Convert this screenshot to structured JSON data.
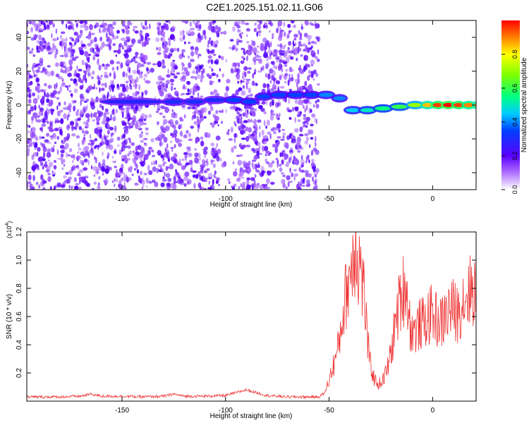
{
  "title": "C2E1.2025.151.02.11.G06",
  "chart_data": [
    {
      "type": "heatmap",
      "xlabel": "Height of straight line (km)",
      "ylabel": "Frequency (Hz)",
      "xlim": [
        -196,
        21
      ],
      "ylim": [
        -50,
        50
      ],
      "xticks": [
        -150,
        -100,
        -50,
        0
      ],
      "yticks": [
        -40,
        -20,
        0,
        20,
        40
      ],
      "colorbar": {
        "label": "Normalized spectral amplitude",
        "range": [
          0,
          1
        ],
        "ticks": [
          "0.0",
          "0.2",
          "0.4",
          "0.6",
          "0.8"
        ]
      },
      "ridge": {
        "x": [
          -160,
          -130,
          -120,
          -110,
          -100,
          -92,
          -85,
          -78,
          -70,
          -62,
          -55,
          -48,
          -42,
          -35,
          -28,
          -20,
          -12,
          -5,
          0,
          5,
          10,
          15,
          20
        ],
        "freq": [
          2,
          2,
          2,
          3,
          3,
          2,
          5,
          6,
          6,
          6,
          6,
          4,
          -3,
          -3,
          -2,
          -1,
          0,
          0,
          0,
          0,
          0,
          0,
          0
        ],
        "amplitude": [
          0.28,
          0.3,
          0.3,
          0.3,
          0.35,
          0.35,
          0.35,
          0.35,
          0.35,
          0.35,
          0.4,
          0.4,
          0.45,
          0.5,
          0.55,
          0.6,
          0.7,
          0.85,
          0.95,
          1.0,
          0.95,
          0.9,
          0.85
        ]
      }
    },
    {
      "type": "line",
      "xlabel": "Height of straight line (km)",
      "ylabel": "SNR (10 * v/v)",
      "scale_label": "(x10",
      "scale_exp": "4",
      "scale_close": ")",
      "xlim": [
        -196,
        21
      ],
      "ylim": [
        0,
        1.2
      ],
      "xticks": [
        -150,
        -100,
        -50,
        0
      ],
      "yticks": [
        "0.2",
        "0.4",
        "0.6",
        "0.8",
        "1.0",
        "1.2"
      ],
      "series": [
        {
          "color": "#ee3333",
          "x": [
            -196,
            -180,
            -170,
            -165,
            -160,
            -150,
            -140,
            -130,
            -125,
            -120,
            -110,
            -100,
            -95,
            -90,
            -85,
            -80,
            -70,
            -60,
            -55,
            -52,
            -50,
            -48,
            -46,
            -44,
            -42,
            -40,
            -38,
            -37,
            -36,
            -35,
            -34,
            -33,
            -32,
            -31,
            -30,
            -28,
            -26,
            -24,
            -22,
            -20,
            -18,
            -16,
            -14,
            -13,
            -12,
            -11,
            -10,
            -8,
            -6,
            -4,
            -2,
            0,
            2,
            4,
            6,
            8,
            10,
            12,
            14,
            16,
            18,
            20,
            21
          ],
          "y": [
            0.03,
            0.03,
            0.035,
            0.05,
            0.035,
            0.035,
            0.03,
            0.035,
            0.05,
            0.035,
            0.035,
            0.04,
            0.06,
            0.08,
            0.06,
            0.04,
            0.03,
            0.03,
            0.03,
            0.06,
            0.15,
            0.25,
            0.35,
            0.55,
            0.75,
            0.9,
            1.05,
            1.2,
            0.95,
            1.0,
            0.85,
            0.75,
            0.55,
            0.35,
            0.25,
            0.15,
            0.12,
            0.15,
            0.22,
            0.35,
            0.55,
            0.7,
            0.8,
            0.85,
            0.7,
            0.55,
            0.5,
            0.5,
            0.55,
            0.55,
            0.6,
            0.62,
            0.58,
            0.55,
            0.6,
            0.65,
            0.65,
            0.62,
            0.7,
            0.75,
            0.78,
            0.8,
            0.8
          ]
        }
      ]
    }
  ]
}
